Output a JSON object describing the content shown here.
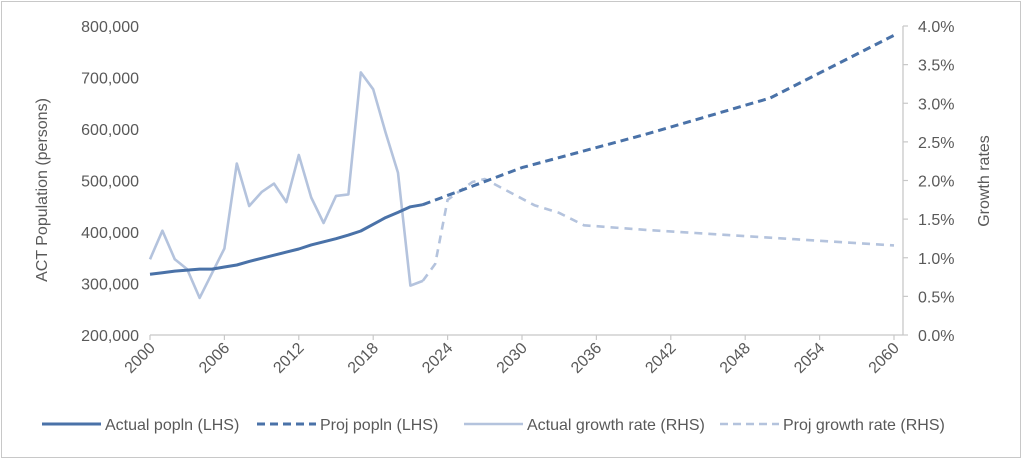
{
  "chart_data": {
    "type": "line",
    "title": "",
    "y_left_label": "ACT Population (persons)",
    "y_right_label": "Growth rates",
    "x_ticks": [
      "2000",
      "2006",
      "2012",
      "2018",
      "2024",
      "2030",
      "2036",
      "2042",
      "2048",
      "2054",
      "2060"
    ],
    "y_left_ticks": [
      "200,000",
      "300,000",
      "400,000",
      "500,000",
      "600,000",
      "700,000",
      "800,000"
    ],
    "y_right_ticks": [
      "0.0%",
      "0.5%",
      "1.0%",
      "1.5%",
      "2.0%",
      "2.5%",
      "3.0%",
      "3.5%",
      "4.0%"
    ],
    "x_range": [
      2000,
      2060
    ],
    "y_left_range": [
      200000,
      800000
    ],
    "y_right_range": [
      0.0,
      4.0
    ],
    "grid": false,
    "legend_position": "bottom",
    "series": [
      {
        "name": "Actual popln (LHS)",
        "axis": "left",
        "style": "solid",
        "color": "#4a72a8",
        "x": [
          2000,
          2001,
          2002,
          2003,
          2004,
          2005,
          2006,
          2007,
          2008,
          2009,
          2010,
          2011,
          2012,
          2013,
          2014,
          2015,
          2016,
          2017,
          2018,
          2019,
          2020,
          2021,
          2022
        ],
        "y": [
          318000,
          321000,
          324000,
          326000,
          328000,
          328000,
          332000,
          336000,
          343000,
          349000,
          355000,
          361000,
          367000,
          375000,
          381000,
          387000,
          394000,
          402000,
          415000,
          428000,
          438000,
          449000,
          453000
        ]
      },
      {
        "name": "Proj popln (LHS)",
        "axis": "left",
        "style": "dashed",
        "color": "#4a72a8",
        "x": [
          2022,
          2030,
          2040,
          2050,
          2060
        ],
        "y": [
          453000,
          525000,
          590000,
          660000,
          782000
        ]
      },
      {
        "name": "Actual growth rate (RHS)",
        "axis": "right",
        "style": "solid",
        "color": "#b4c3dd",
        "x": [
          2000,
          2001,
          2002,
          2003,
          2004,
          2005,
          2006,
          2007,
          2008,
          2009,
          2010,
          2011,
          2012,
          2013,
          2014,
          2015,
          2016,
          2017,
          2018,
          2019,
          2020,
          2021,
          2022
        ],
        "y": [
          0.98,
          1.35,
          0.98,
          0.85,
          0.48,
          0.8,
          1.12,
          2.22,
          1.67,
          1.85,
          1.96,
          1.72,
          2.33,
          1.78,
          1.45,
          1.8,
          1.82,
          3.4,
          3.18,
          2.62,
          2.1,
          0.64,
          0.7
        ]
      },
      {
        "name": "Proj growth rate (RHS)",
        "axis": "right",
        "style": "dashed",
        "color": "#b4c3dd",
        "x": [
          2022,
          2023,
          2024,
          2026,
          2027,
          2029,
          2031,
          2033,
          2035,
          2040,
          2044,
          2048,
          2052,
          2056,
          2060
        ],
        "y": [
          0.7,
          0.92,
          1.75,
          1.98,
          2.02,
          1.85,
          1.68,
          1.58,
          1.42,
          1.36,
          1.32,
          1.28,
          1.24,
          1.2,
          1.16
        ]
      }
    ]
  }
}
